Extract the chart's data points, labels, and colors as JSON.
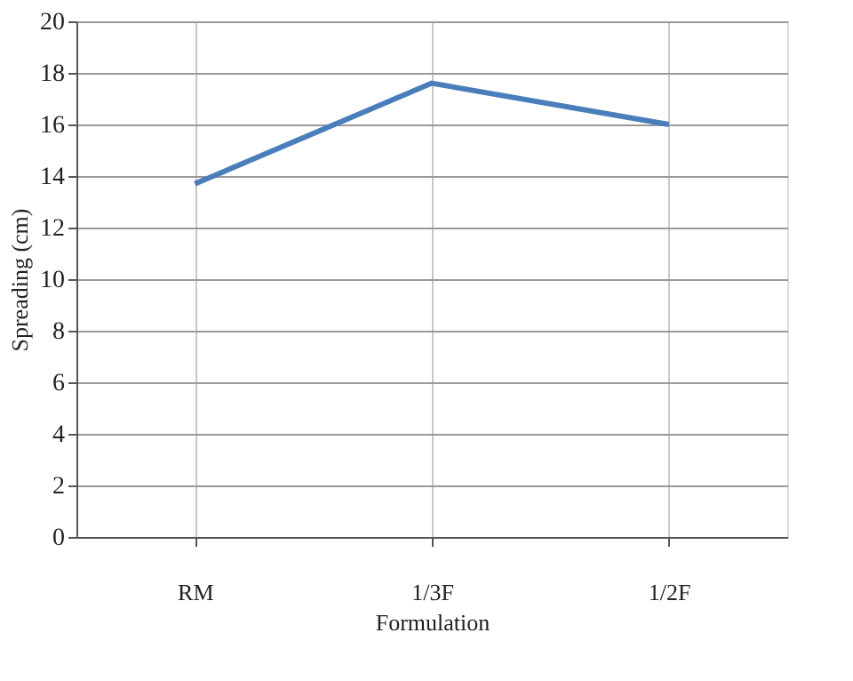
{
  "chart_data": {
    "type": "line",
    "xlabel": "Formulation",
    "ylabel": "Spreading (cm)",
    "categories": [
      "RM",
      "1/3F",
      "1/2F"
    ],
    "series": [
      {
        "color": "#4a7ebb",
        "values": [
          13.7,
          17.6,
          16.0
        ]
      }
    ],
    "ylim": [
      0,
      20
    ],
    "yticks": [
      0,
      2,
      4,
      6,
      8,
      10,
      12,
      14,
      16,
      18,
      20
    ],
    "grid": true,
    "marker": "none",
    "line_style": "solid"
  }
}
